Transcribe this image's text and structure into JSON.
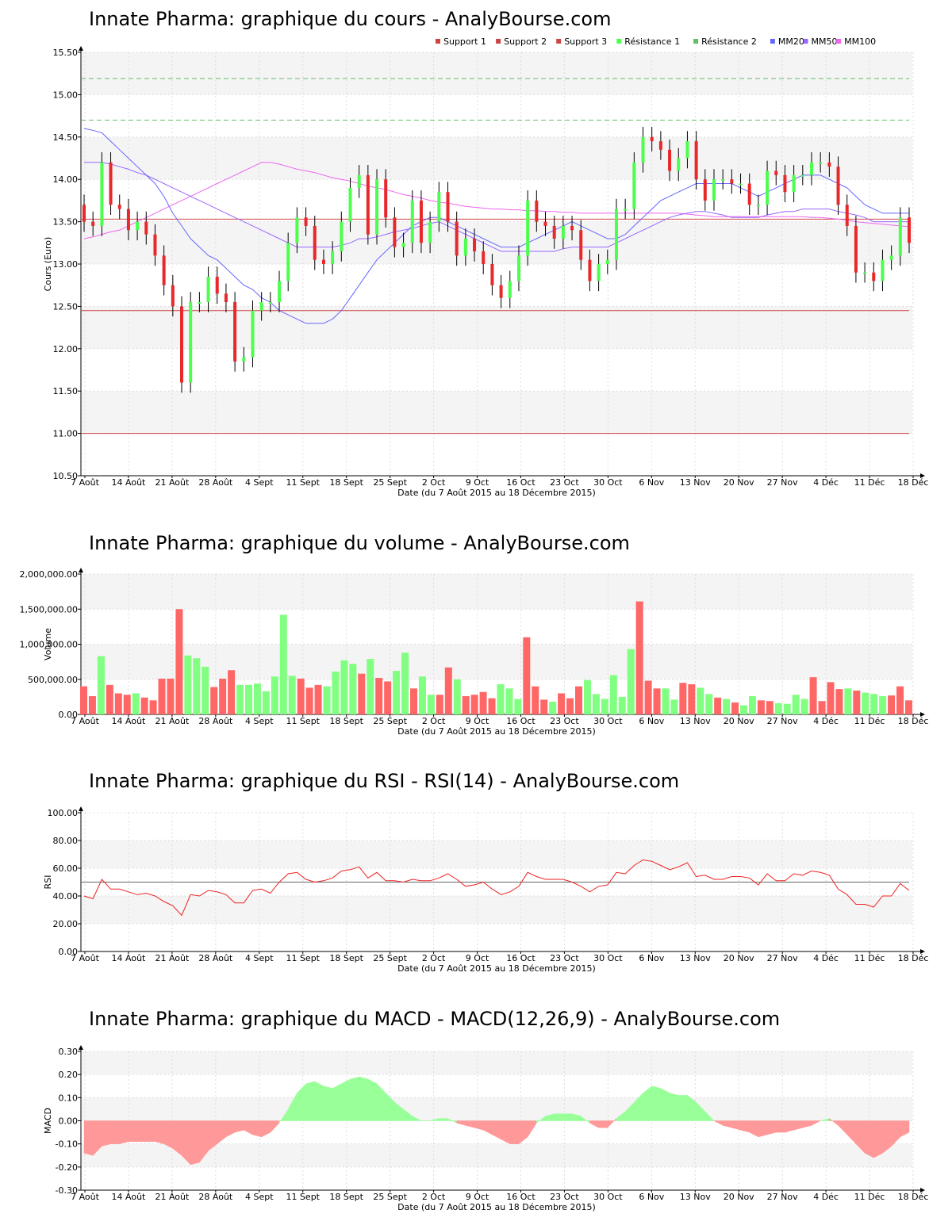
{
  "xaxis": {
    "ticks": [
      "7 Août",
      "14 Août",
      "21 Août",
      "28 Août",
      "4 Sept",
      "11 Sept",
      "18 Sept",
      "25 Sept",
      "2 Oct",
      "9 Oct",
      "16 Oct",
      "23 Oct",
      "30 Oct",
      "6 Nov",
      "13 Nov",
      "20 Nov",
      "27 Nov",
      "4 Déc",
      "11 Déc",
      "18 Déc"
    ],
    "label": "Date (du 7 Août 2015 au 18 Décembre 2015)"
  },
  "colors": {
    "up": "#4dff4d",
    "down": "#e8282a",
    "vol_up": "#80ff80",
    "vol_down": "#ff6666",
    "support": "#cc4444",
    "resistance": "#66bb66",
    "mm20": "#6666ff",
    "mm50": "#9966ff",
    "mm100": "#ee66ee",
    "rsi": "#ee2222",
    "macd_pos": "#99ff99",
    "macd_neg": "#ff9999"
  },
  "chart_data": [
    {
      "type": "candlestick",
      "title": "Innate Pharma: graphique du cours - AnalyBourse.com",
      "ylabel": "Cours (Euro)",
      "ylim": [
        10.5,
        15.5
      ],
      "yticks": [
        "10.50",
        "11.00",
        "11.50",
        "12.00",
        "12.50",
        "13.00",
        "13.50",
        "14.00",
        "14.50",
        "15.00",
        "15.50"
      ],
      "legend": [
        "Support 1",
        "Support 2",
        "Support 3",
        "Résistance 1",
        "Résistance 2",
        "MM20",
        "MM50",
        "MM100"
      ],
      "support": [
        13.53,
        12.45,
        11.0
      ],
      "resistance": [
        14.7,
        15.19
      ],
      "close": [
        13.5,
        13.45,
        14.2,
        13.7,
        13.65,
        13.4,
        13.5,
        13.35,
        13.1,
        12.75,
        12.5,
        11.6,
        12.55,
        12.55,
        12.85,
        12.65,
        12.55,
        11.85,
        11.9,
        12.45,
        12.55,
        12.55,
        12.8,
        13.25,
        13.55,
        13.45,
        13.05,
        13.0,
        13.15,
        13.5,
        13.9,
        14.05,
        13.35,
        14.0,
        13.55,
        13.2,
        13.25,
        13.75,
        13.25,
        13.5,
        13.85,
        13.5,
        13.1,
        13.3,
        13.15,
        13.0,
        12.75,
        12.6,
        12.8,
        13.1,
        13.75,
        13.5,
        13.45,
        13.3,
        13.45,
        13.4,
        13.05,
        12.8,
        13.0,
        13.05,
        13.65,
        13.65,
        14.2,
        14.5,
        14.45,
        14.35,
        14.1,
        14.25,
        14.45,
        14.0,
        13.75,
        14.0,
        14.0,
        13.95,
        13.95,
        13.7,
        13.7,
        14.1,
        14.05,
        13.85,
        14.05,
        14.05,
        14.2,
        14.2,
        14.15,
        13.7,
        13.45,
        12.9,
        12.9,
        12.8,
        13.05,
        13.1,
        13.55,
        13.25
      ],
      "ma20": [
        14.6,
        14.58,
        14.55,
        14.45,
        14.35,
        14.25,
        14.15,
        14.05,
        13.95,
        13.8,
        13.6,
        13.45,
        13.3,
        13.2,
        13.1,
        13.05,
        12.95,
        12.85,
        12.75,
        12.7,
        12.6,
        12.55,
        12.45,
        12.4,
        12.35,
        12.3,
        12.3,
        12.3,
        12.35,
        12.45,
        12.6,
        12.75,
        12.9,
        13.05,
        13.15,
        13.25,
        13.35,
        13.45,
        13.5,
        13.55,
        13.55,
        13.5,
        13.45,
        13.4,
        13.35,
        13.3,
        13.25,
        13.2,
        13.2,
        13.2,
        13.25,
        13.3,
        13.35,
        13.4,
        13.45,
        13.5,
        13.45,
        13.4,
        13.35,
        13.3,
        13.3,
        13.35,
        13.45,
        13.55,
        13.65,
        13.75,
        13.8,
        13.85,
        13.9,
        13.95,
        13.95,
        13.95,
        13.95,
        13.95,
        13.9,
        13.85,
        13.8,
        13.85,
        13.9,
        13.95,
        14.0,
        14.05,
        14.05,
        14.05,
        14.0,
        13.95,
        13.9,
        13.8,
        13.7,
        13.65,
        13.6,
        13.6,
        13.6,
        13.6
      ],
      "ma50": [
        14.2,
        14.2,
        14.2,
        14.18,
        14.15,
        14.12,
        14.08,
        14.05,
        14.0,
        13.95,
        13.9,
        13.85,
        13.8,
        13.75,
        13.7,
        13.65,
        13.6,
        13.55,
        13.5,
        13.45,
        13.4,
        13.35,
        13.3,
        13.25,
        13.2,
        13.2,
        13.2,
        13.2,
        13.2,
        13.22,
        13.25,
        13.3,
        13.3,
        13.32,
        13.35,
        13.38,
        13.4,
        13.42,
        13.45,
        13.48,
        13.5,
        13.45,
        13.4,
        13.35,
        13.3,
        13.25,
        13.2,
        13.15,
        13.15,
        13.15,
        13.15,
        13.15,
        13.15,
        13.15,
        13.18,
        13.2,
        13.2,
        13.2,
        13.2,
        13.2,
        13.25,
        13.3,
        13.35,
        13.4,
        13.45,
        13.5,
        13.55,
        13.58,
        13.6,
        13.62,
        13.62,
        13.6,
        13.58,
        13.55,
        13.55,
        13.55,
        13.55,
        13.58,
        13.6,
        13.62,
        13.62,
        13.65,
        13.65,
        13.65,
        13.65,
        13.62,
        13.6,
        13.58,
        13.55,
        13.5,
        13.5,
        13.5,
        13.5,
        13.5
      ],
      "ma100": [
        13.3,
        13.32,
        13.35,
        13.38,
        13.4,
        13.45,
        13.5,
        13.55,
        13.6,
        13.65,
        13.7,
        13.75,
        13.8,
        13.85,
        13.9,
        13.95,
        14.0,
        14.05,
        14.1,
        14.15,
        14.2,
        14.2,
        14.18,
        14.15,
        14.12,
        14.1,
        14.08,
        14.05,
        14.02,
        14.0,
        13.98,
        13.95,
        13.92,
        13.9,
        13.88,
        13.85,
        13.82,
        13.8,
        13.78,
        13.75,
        13.73,
        13.72,
        13.7,
        13.68,
        13.67,
        13.66,
        13.65,
        13.65,
        13.64,
        13.64,
        13.63,
        13.63,
        13.62,
        13.62,
        13.61,
        13.61,
        13.6,
        13.6,
        13.6,
        13.6,
        13.6,
        13.6,
        13.6,
        13.6,
        13.6,
        13.6,
        13.6,
        13.6,
        13.59,
        13.58,
        13.57,
        13.56,
        13.56,
        13.56,
        13.56,
        13.56,
        13.56,
        13.56,
        13.56,
        13.56,
        13.56,
        13.56,
        13.55,
        13.55,
        13.54,
        13.53,
        13.52,
        13.5,
        13.49,
        13.48,
        13.47,
        13.46,
        13.45,
        13.44
      ]
    },
    {
      "type": "bar",
      "title": "Innate Pharma: graphique du volume - AnalyBourse.com",
      "ylabel": "Volume",
      "ylim": [
        0,
        2000000
      ],
      "yticks": [
        "0.00",
        "500,000.00",
        "1,000,000.00",
        "1,500,000.00",
        "2,000,000.00"
      ],
      "values": [
        400000,
        260000,
        830000,
        420000,
        300000,
        280000,
        300000,
        240000,
        200000,
        510000,
        510000,
        1500000,
        840000,
        800000,
        680000,
        390000,
        510000,
        630000,
        420000,
        420000,
        440000,
        330000,
        540000,
        1420000,
        550000,
        510000,
        380000,
        420000,
        400000,
        610000,
        770000,
        720000,
        580000,
        790000,
        520000,
        470000,
        620000,
        880000,
        370000,
        540000,
        280000,
        280000,
        670000,
        500000,
        260000,
        280000,
        320000,
        230000,
        430000,
        370000,
        220000,
        1100000,
        400000,
        210000,
        180000,
        300000,
        230000,
        400000,
        490000,
        290000,
        220000,
        560000,
        250000,
        930000,
        1610000,
        480000,
        370000,
        370000,
        210000,
        450000,
        430000,
        380000,
        290000,
        240000,
        220000,
        170000,
        130000,
        260000,
        200000,
        190000,
        160000,
        150000,
        280000,
        220000,
        530000,
        190000,
        460000,
        360000,
        370000,
        340000,
        310000,
        290000,
        260000,
        270000,
        400000,
        200000
      ]
    },
    {
      "type": "line",
      "title": "Innate Pharma: graphique du RSI - RSI(14) - AnalyBourse.com",
      "ylabel": "RSI",
      "ylim": [
        0,
        100
      ],
      "yticks": [
        "0.00",
        "20.00",
        "40.00",
        "60.00",
        "80.00",
        "100.00"
      ],
      "reference": 50,
      "values": [
        40,
        38,
        52,
        45,
        45,
        43,
        41,
        42,
        40,
        36,
        33,
        26,
        41,
        40,
        44,
        43,
        41,
        35,
        35,
        44,
        45,
        42,
        50,
        56,
        57,
        52,
        50,
        51,
        53,
        58,
        59,
        61,
        53,
        57,
        51,
        51,
        50,
        52,
        51,
        51,
        53,
        56,
        52,
        47,
        48,
        50,
        45,
        41,
        43,
        47,
        57,
        54,
        52,
        52,
        52,
        50,
        47,
        43,
        47,
        48,
        57,
        56,
        62,
        66,
        65,
        62,
        59,
        61,
        64,
        54,
        55,
        52,
        52,
        54,
        54,
        53,
        48,
        56,
        51,
        51,
        56,
        55,
        58,
        57,
        55,
        45,
        41,
        34,
        34,
        32,
        40,
        40,
        49,
        44
      ]
    },
    {
      "type": "area",
      "title": "Innate Pharma: graphique du MACD - MACD(12,26,9) - AnalyBourse.com",
      "ylabel": "MACD",
      "ylim": [
        -0.3,
        0.3
      ],
      "yticks": [
        "-0.30",
        "-0.20",
        "-0.10",
        "0.00",
        "0.10",
        "0.20",
        "0.30"
      ],
      "values": [
        -0.14,
        -0.15,
        -0.11,
        -0.1,
        -0.1,
        -0.09,
        -0.09,
        -0.09,
        -0.09,
        -0.1,
        -0.12,
        -0.15,
        -0.19,
        -0.18,
        -0.13,
        -0.1,
        -0.07,
        -0.05,
        -0.04,
        -0.06,
        -0.07,
        -0.05,
        -0.01,
        0.05,
        0.12,
        0.16,
        0.17,
        0.15,
        0.14,
        0.16,
        0.18,
        0.19,
        0.18,
        0.16,
        0.12,
        0.08,
        0.05,
        0.02,
        0.0,
        0.0,
        0.01,
        0.01,
        -0.01,
        -0.02,
        -0.03,
        -0.04,
        -0.06,
        -0.08,
        -0.1,
        -0.1,
        -0.07,
        -0.01,
        0.02,
        0.03,
        0.03,
        0.03,
        0.02,
        -0.01,
        -0.03,
        -0.03,
        0.01,
        0.04,
        0.08,
        0.12,
        0.15,
        0.14,
        0.12,
        0.11,
        0.11,
        0.08,
        0.04,
        0.0,
        -0.02,
        -0.03,
        -0.04,
        -0.05,
        -0.07,
        -0.06,
        -0.05,
        -0.05,
        -0.04,
        -0.03,
        -0.02,
        0.0,
        0.01,
        -0.02,
        -0.06,
        -0.1,
        -0.14,
        -0.16,
        -0.14,
        -0.11,
        -0.07,
        -0.05
      ]
    }
  ]
}
